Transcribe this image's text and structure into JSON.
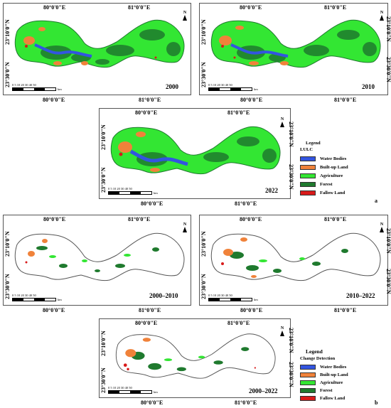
{
  "coords": {
    "lon1": "80°0'0\"E",
    "lon2": "81°0'0\"E",
    "lat1": "23°10'0\"N",
    "lat2": "23°30'0\"N"
  },
  "north_label": "N",
  "scale": {
    "ticks": "0  5 10   20   30   40   50",
    "unit": "km"
  },
  "lulc_panels": [
    {
      "year": "2000"
    },
    {
      "year": "2010"
    },
    {
      "year": "2022"
    }
  ],
  "change_panels": [
    {
      "year": "2000–2010"
    },
    {
      "year": "2010–2022"
    },
    {
      "year": "2000–2022"
    }
  ],
  "legend_a": {
    "title": "Legend",
    "subtitle": "LULC",
    "items": [
      {
        "label": "Water Bodies",
        "color": "#3355e0"
      },
      {
        "label": "Built-up Land",
        "color": "#f0823a"
      },
      {
        "label": "Agriculture",
        "color": "#33e633"
      },
      {
        "label": "Forest",
        "color": "#1f7a2e"
      },
      {
        "label": "Fallow Land",
        "color": "#d81a1a"
      }
    ]
  },
  "legend_b": {
    "title": "Legend",
    "subtitle": "Change Detection",
    "items": [
      {
        "label": "Water Bodies",
        "color": "#3355e0"
      },
      {
        "label": "Built-up Land",
        "color": "#f0823a"
      },
      {
        "label": "Agriculture",
        "color": "#33e633"
      },
      {
        "label": "Forest",
        "color": "#1f7a2e"
      },
      {
        "label": "Fallow Land",
        "color": "#d81a1a"
      }
    ]
  },
  "figure_tags": {
    "a": "a",
    "b": "b"
  }
}
